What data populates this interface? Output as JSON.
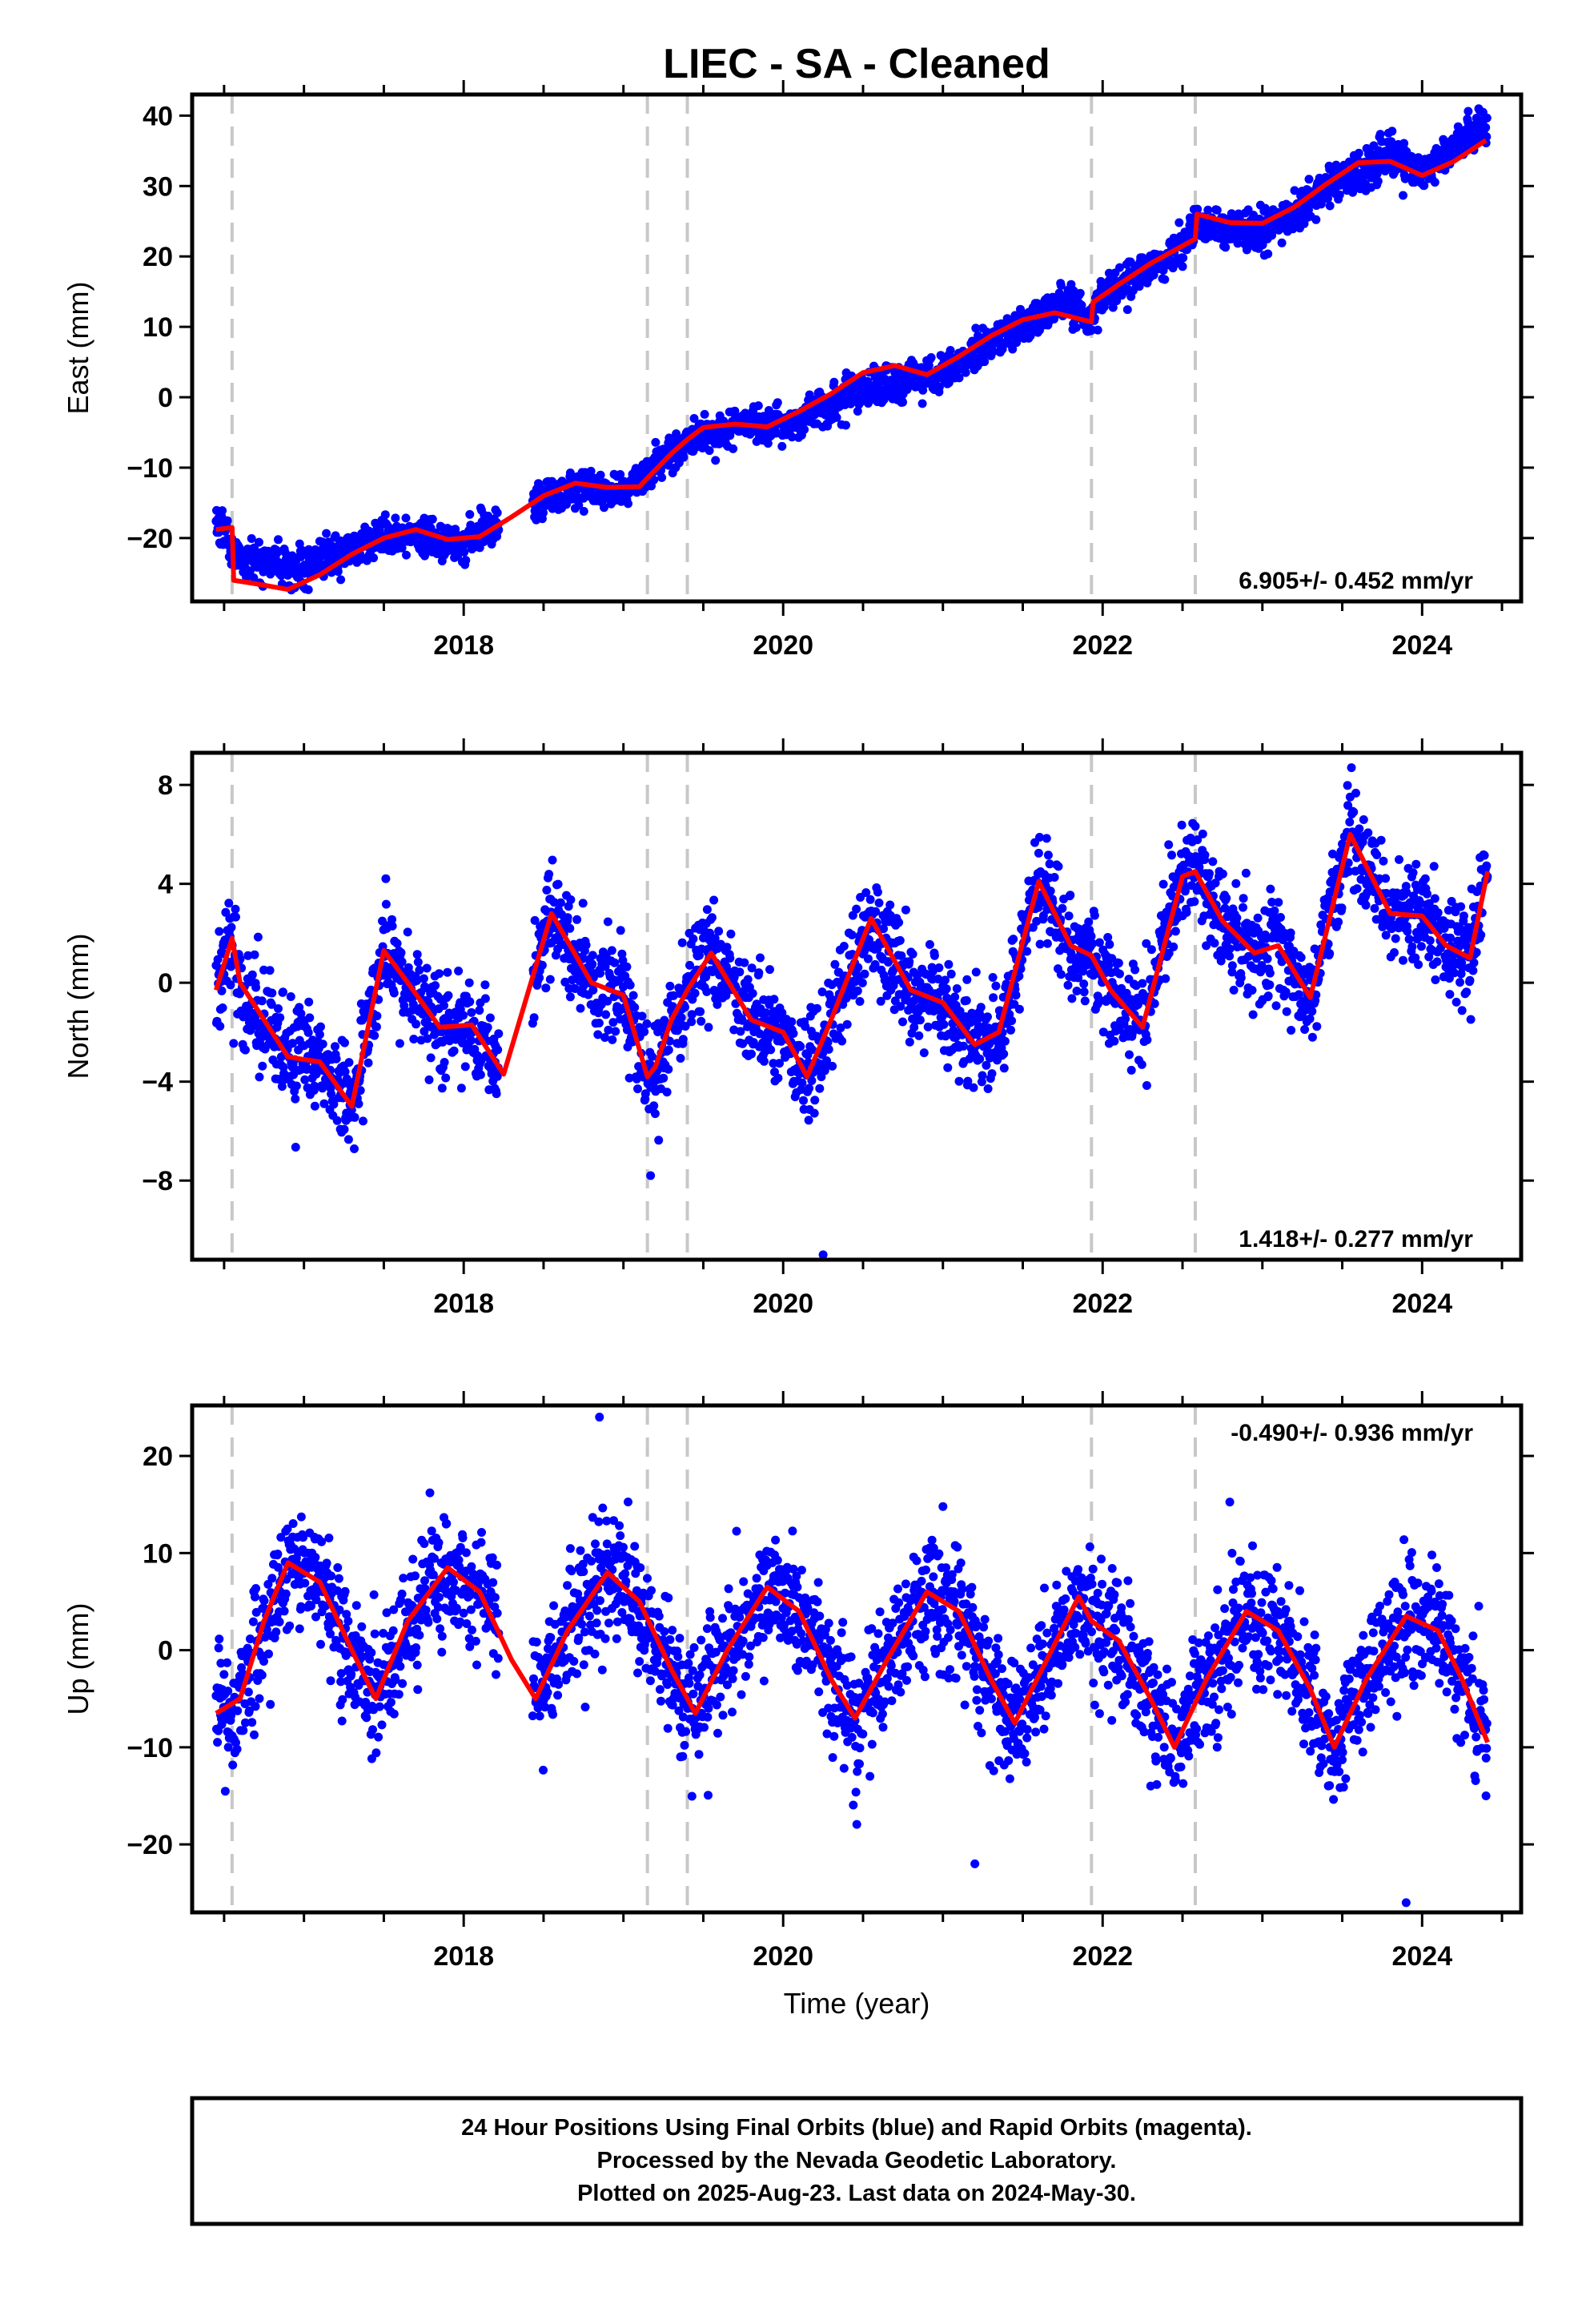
{
  "title": "LIEC  - SA - Cleaned",
  "xlabel": "Time (year)",
  "footer": {
    "line1": "24 Hour Positions Using Final Orbits (blue) and Rapid Orbits (magenta).",
    "line2": "Processed by the Nevada Geodetic Laboratory.",
    "line3": "Plotted on 2025-Aug-23. Last data on 2024-May-30."
  },
  "colors": {
    "final_orbits": "#0000ff",
    "model": "#ff0000",
    "equipment_change": "#c8c8c8"
  },
  "chart_data": [
    {
      "type": "scatter",
      "component": "East",
      "ylabel": "East (mm)",
      "rate_label": "6.905+/- 0.452 mm/yr",
      "rate_placement": "bottom-right",
      "xlim": [
        2016.3,
        2024.62
      ],
      "ylim": [
        -29,
        43
      ],
      "x_ticks": [
        2018,
        2020,
        2022,
        2024
      ],
      "x_tick_labels": [
        "2018",
        "2020",
        "2022",
        "2024"
      ],
      "y_ticks": [
        -20,
        -10,
        0,
        10,
        20,
        30,
        40
      ],
      "y_tick_labels": [
        "−20",
        "−10",
        "0",
        "10",
        "20",
        "30",
        "40"
      ],
      "vlines": [
        2016.55,
        2019.15,
        2019.4,
        2021.93,
        2022.58
      ],
      "model": {
        "name": "model",
        "x": [
          2016.45,
          2016.55,
          2016.56,
          2016.7,
          2016.9,
          2017.1,
          2017.3,
          2017.5,
          2017.7,
          2017.9,
          2018.1,
          2018.3,
          2018.5,
          2018.7,
          2018.9,
          2019.1,
          2019.15,
          2019.3,
          2019.4,
          2019.5,
          2019.7,
          2019.9,
          2020.1,
          2020.3,
          2020.5,
          2020.7,
          2020.9,
          2021.1,
          2021.3,
          2021.5,
          2021.7,
          2021.93,
          2021.94,
          2022.1,
          2022.3,
          2022.58,
          2022.59,
          2022.8,
          2023.0,
          2023.2,
          2023.4,
          2023.6,
          2023.8,
          2024.0,
          2024.2,
          2024.4
        ],
        "y": [
          -18.8,
          -18.5,
          -26,
          -26.5,
          -27.3,
          -25.2,
          -22.3,
          -20,
          -18.8,
          -20.2,
          -19.8,
          -17,
          -14,
          -12.2,
          -12.8,
          -12.7,
          -11.5,
          -8,
          -6,
          -4.3,
          -3.8,
          -4.2,
          -2,
          0.5,
          3.5,
          4.5,
          3.2,
          5.8,
          8.7,
          11,
          12,
          10.7,
          13.5,
          16,
          19,
          22.5,
          26,
          24.8,
          24.7,
          27,
          30.3,
          33.3,
          33.5,
          31.5,
          33.5,
          36.5
        ]
      },
      "points": {
        "name": "final_orbits",
        "x_start": 2016.45,
        "x_end": 2024.41,
        "gap": [
          2018.22,
          2018.43
        ],
        "trend_x": [
          2016.45,
          2016.52,
          2016.53,
          2017.0,
          2017.5,
          2018.0,
          2018.4,
          2018.7,
          2019.0,
          2019.4,
          2019.7,
          2020.0,
          2020.5,
          2021.0,
          2021.5,
          2021.75,
          2021.93,
          2022.0,
          2022.5,
          2022.6,
          2023.0,
          2023.5,
          2023.8,
          2024.0,
          2024.41
        ],
        "trend_y": [
          -18.5,
          -18.5,
          -22.5,
          -24.5,
          -19.5,
          -20.5,
          -15,
          -13,
          -13.5,
          -6,
          -4,
          -4,
          1,
          3.5,
          10.5,
          13.5,
          11,
          14.5,
          21,
          24.5,
          23.5,
          31,
          34.5,
          32,
          39
        ],
        "scatter_sd": 1.3
      }
    },
    {
      "type": "scatter",
      "component": "North",
      "ylabel": "North (mm)",
      "rate_label": "1.418+/- 0.277 mm/yr",
      "rate_placement": "bottom-right",
      "xlim": [
        2016.3,
        2024.62
      ],
      "ylim": [
        -11.2,
        9.3
      ],
      "x_ticks": [
        2018,
        2020,
        2022,
        2024
      ],
      "x_tick_labels": [
        "2018",
        "2020",
        "2022",
        "2024"
      ],
      "y_ticks": [
        -8,
        -4,
        0,
        4,
        8
      ],
      "y_tick_labels": [
        "−8",
        "−4",
        "0",
        "4",
        "8"
      ],
      "vlines": [
        2016.55,
        2019.15,
        2019.4,
        2021.93,
        2022.58
      ],
      "model": {
        "name": "model",
        "x": [
          2016.45,
          2016.55,
          2016.6,
          2016.75,
          2016.9,
          2017.1,
          2017.3,
          2017.5,
          2017.65,
          2017.85,
          2018.05,
          2018.25,
          2018.55,
          2018.8,
          2019.0,
          2019.15,
          2019.2,
          2019.3,
          2019.4,
          2019.55,
          2019.8,
          2020.0,
          2020.15,
          2020.3,
          2020.55,
          2020.8,
          2021.0,
          2021.2,
          2021.35,
          2021.6,
          2021.8,
          2021.93,
          2022.05,
          2022.25,
          2022.5,
          2022.58,
          2022.75,
          2022.95,
          2023.1,
          2023.3,
          2023.55,
          2023.8,
          2024.0,
          2024.15,
          2024.3,
          2024.41
        ],
        "y": [
          -0.3,
          1.8,
          0,
          -1.5,
          -3,
          -3.2,
          -5,
          1.3,
          0,
          -1.8,
          -1.7,
          -3.7,
          2.8,
          0,
          -0.5,
          -3.8,
          -3.4,
          -1.5,
          -0.3,
          1.2,
          -1.5,
          -2,
          -3.8,
          -1.5,
          2.6,
          -0.3,
          -0.8,
          -2.5,
          -2,
          4.1,
          1.5,
          1.1,
          -0.3,
          -1.8,
          4.3,
          4.5,
          2.5,
          1.2,
          1.5,
          -0.6,
          6,
          2.8,
          2.7,
          1.5,
          1,
          4.5
        ]
      },
      "points": {
        "name": "final_orbits",
        "x_start": 2016.45,
        "x_end": 2024.41,
        "gap": [
          2018.22,
          2018.43
        ],
        "scatter_sd": 1.0
      },
      "outliers": [
        {
          "x": 2019.17,
          "y": -7.8
        },
        {
          "x": 2020.25,
          "y": -11
        }
      ]
    },
    {
      "type": "scatter",
      "component": "Up",
      "ylabel": "Up (mm)",
      "rate_label": "-0.490+/- 0.936 mm/yr",
      "rate_placement": "top-right",
      "xlim": [
        2016.3,
        2024.62
      ],
      "ylim": [
        -27,
        25.2
      ],
      "x_ticks": [
        2018,
        2020,
        2022,
        2024
      ],
      "x_tick_labels": [
        "2018",
        "2020",
        "2022",
        "2024"
      ],
      "y_ticks": [
        -20,
        -10,
        0,
        10,
        20
      ],
      "y_tick_labels": [
        "−20",
        "−10",
        "0",
        "10",
        "20"
      ],
      "vlines": [
        2016.55,
        2019.15,
        2019.4,
        2021.93,
        2022.58
      ],
      "model": {
        "name": "model",
        "x": [
          2016.45,
          2016.6,
          2016.75,
          2016.9,
          2017.1,
          2017.3,
          2017.45,
          2017.65,
          2017.9,
          2018.1,
          2018.3,
          2018.45,
          2018.65,
          2018.9,
          2019.1,
          2019.3,
          2019.45,
          2019.65,
          2019.9,
          2020.1,
          2020.3,
          2020.45,
          2020.65,
          2020.9,
          2021.1,
          2021.3,
          2021.45,
          2021.65,
          2021.85,
          2021.93,
          2022.1,
          2022.3,
          2022.45,
          2022.65,
          2022.9,
          2023.1,
          2023.3,
          2023.45,
          2023.65,
          2023.9,
          2024.1,
          2024.25,
          2024.41
        ],
        "y": [
          -6.5,
          -5,
          3,
          9,
          7,
          0,
          -5,
          3,
          8.5,
          6,
          -1,
          -5,
          2,
          8,
          5,
          -2,
          -6.5,
          0,
          6.5,
          4,
          -3,
          -7,
          -1,
          6,
          4,
          -3,
          -7.5,
          -1,
          5.5,
          3,
          1,
          -5,
          -10,
          -3,
          4,
          2,
          -4,
          -10,
          -3,
          3.5,
          2,
          -3,
          -9.5
        ]
      },
      "points": {
        "name": "final_orbits",
        "x_start": 2016.45,
        "x_end": 2024.41,
        "gap": [
          2018.22,
          2018.43
        ],
        "scatter_sd": 3.2
      },
      "outliers": [
        {
          "x": 2018.85,
          "y": 24
        },
        {
          "x": 2023.9,
          "y": -26
        },
        {
          "x": 2021.2,
          "y": -22
        },
        {
          "x": 2024.4,
          "y": -15
        }
      ]
    }
  ]
}
